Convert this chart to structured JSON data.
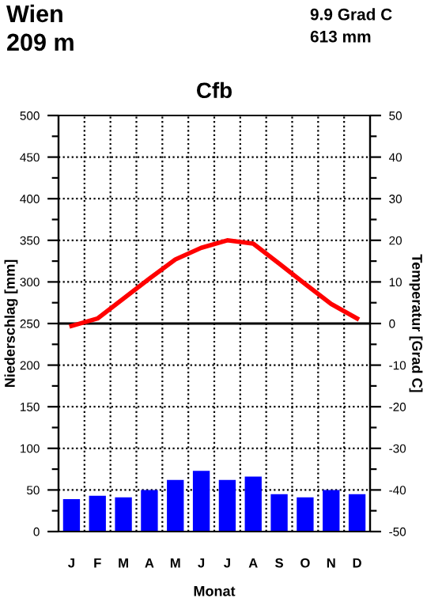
{
  "chart_data": {
    "type": "bar",
    "title": "Cfb",
    "xlabel": "Monat",
    "ylabel": "Niederschlag [mm]",
    "y2label": "Temperatur [Grad C]",
    "annotations": [
      "Wien",
      "209 m",
      "9.9 Grad C",
      "613 mm"
    ],
    "categories": [
      "J",
      "F",
      "M",
      "A",
      "M",
      "J",
      "J",
      "A",
      "S",
      "O",
      "N",
      "D"
    ],
    "series": [
      {
        "color": "#0000ff",
        "values": [
          39,
          43,
          41,
          50,
          62,
          73,
          62,
          66,
          45,
          41,
          50,
          45
        ]
      },
      {
        "type": "line",
        "axis": "y2",
        "color": "#ff0000",
        "values": [
          -0.6,
          1.2,
          6.0,
          10.8,
          15.4,
          18.2,
          20.0,
          19.2,
          14.4,
          9.5,
          4.7,
          1.2
        ]
      }
    ],
    "ylim": [
      0,
      500
    ],
    "yticks": [
      0,
      {
        "value": 25,
        "label": null
      },
      50,
      {
        "value": 75,
        "label": null
      },
      100,
      {
        "value": 125,
        "label": null
      },
      150,
      {
        "value": 175,
        "label": null
      },
      200,
      {
        "value": 225,
        "label": null
      },
      250,
      {
        "value": 275,
        "label": null
      },
      300,
      {
        "value": 325,
        "label": null
      },
      350,
      {
        "value": 375,
        "label": null
      },
      400,
      {
        "value": 425,
        "label": null
      },
      450,
      {
        "value": 475,
        "label": null
      },
      500
    ],
    "y2lim": [
      -50,
      50
    ],
    "y2ticks": [
      -50,
      {
        "value": -45,
        "label": null
      },
      -40,
      {
        "value": -35,
        "label": null
      },
      -30,
      {
        "value": -25,
        "label": null
      },
      -20,
      {
        "value": -15,
        "label": null
      },
      -10,
      {
        "value": -5,
        "label": null
      },
      0,
      {
        "value": 5,
        "label": null
      },
      10,
      {
        "value": 15,
        "label": null
      },
      20,
      {
        "value": 25,
        "label": null
      },
      30,
      {
        "value": 35,
        "label": null
      },
      40,
      {
        "value": 45,
        "label": null
      },
      50
    ],
    "ref_lines": [
      {
        "axis": "y2",
        "value": 0,
        "color": "#000000",
        "line_style": "solid"
      }
    ],
    "grid": true,
    "legend": false
  }
}
